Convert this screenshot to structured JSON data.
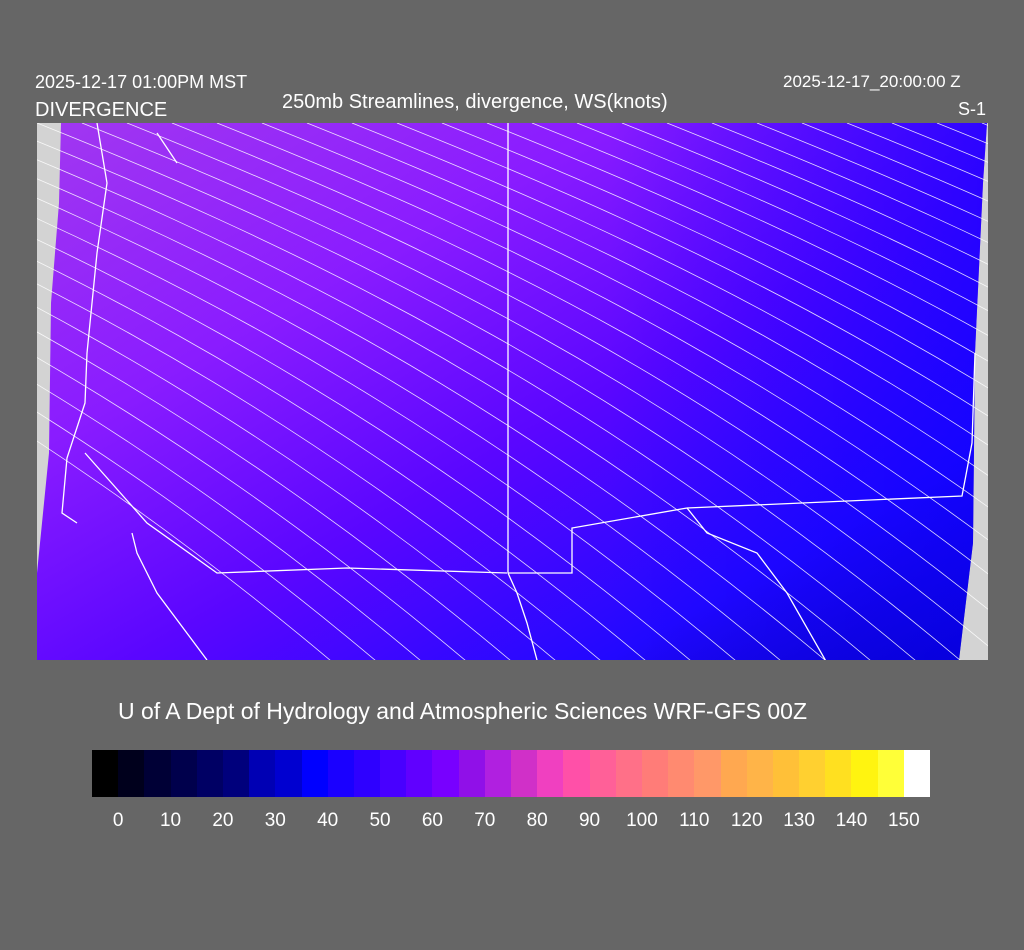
{
  "header": {
    "title": "250mb Streamlines, divergence, WS(knots)",
    "local_time": "2025-12-17 01:00PM MST",
    "field_label": "DIVERGENCE",
    "valid_time": "2025-12-17_20:00:00 Z",
    "scale_label": "S-1"
  },
  "footer": {
    "credit": "U of A Dept of Hydrology and Atmospheric Sciences WRF-GFS 00Z"
  },
  "colorbar": {
    "unit": "knots",
    "tick_labels": [
      "0",
      "10",
      "20",
      "30",
      "40",
      "50",
      "60",
      "70",
      "80",
      "90",
      "100",
      "110",
      "120",
      "130",
      "140",
      "150"
    ],
    "colors": [
      "#000000",
      "#00001c",
      "#000036",
      "#00004c",
      "#000064",
      "#00007c",
      "#0000b4",
      "#0000d0",
      "#0000ff",
      "#1a00ff",
      "#2e00ff",
      "#4800ff",
      "#6000ff",
      "#7800ff",
      "#9010e8",
      "#b020e0",
      "#d030c8",
      "#f040c0",
      "#ff50a8",
      "#ff6098",
      "#ff7088",
      "#ff7c78",
      "#ff8a70",
      "#ff9868",
      "#ffa850",
      "#ffb448",
      "#ffc038",
      "#ffd030",
      "#ffe020",
      "#fff410",
      "#ffff38",
      "#ffff88",
      "#ffffff"
    ]
  },
  "map": {
    "fill_colors": {
      "west": "#a030f0",
      "mid": "#7000ff",
      "east": "#2010ff",
      "southeast": "#0000c0"
    },
    "missing_data_color": "#d3d3d3",
    "line_color": "#ffffff"
  }
}
